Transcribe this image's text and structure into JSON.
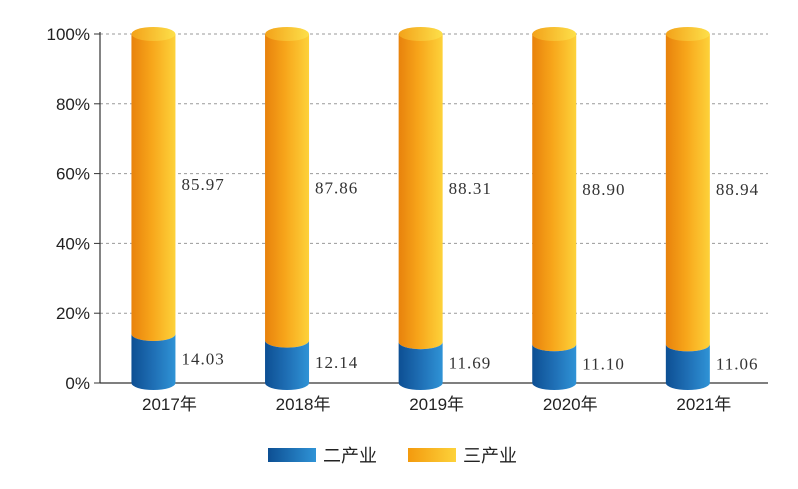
{
  "chart_data": {
    "type": "bar",
    "stacked": true,
    "percent": true,
    "categories": [
      "2017年",
      "2018年",
      "2019年",
      "2020年",
      "2021年"
    ],
    "series": [
      {
        "name": "二产业",
        "values": [
          14.03,
          12.14,
          11.69,
          11.1,
          11.06
        ],
        "color": "#1f6fb5"
      },
      {
        "name": "三产业",
        "values": [
          85.97,
          87.86,
          88.31,
          88.9,
          88.94
        ],
        "color": "#f59a0e"
      }
    ],
    "data_labels": [
      [
        "14.03",
        "12.14",
        "11.69",
        "11.10",
        "11.06"
      ],
      [
        "85.97",
        "87.86",
        "88.31",
        "88.90",
        "88.94"
      ]
    ],
    "ylim": [
      0,
      100
    ],
    "yticks": [
      "0%",
      "20%",
      "40%",
      "60%",
      "80%",
      "100%"
    ],
    "grid": true,
    "legend_position": "bottom-center",
    "title": "",
    "xlabel": "",
    "ylabel": ""
  }
}
